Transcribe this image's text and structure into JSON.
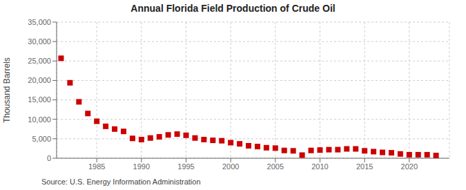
{
  "chart_data": {
    "type": "scatter",
    "title": "Annual Florida Field Production of Crude Oil",
    "ylabel": "Thousand Barrels",
    "annotations": [
      "Source: U.S. Energy Information Administration"
    ],
    "x": [
      1981,
      1982,
      1983,
      1984,
      1985,
      1986,
      1987,
      1988,
      1989,
      1990,
      1991,
      1992,
      1993,
      1994,
      1995,
      1996,
      1997,
      1998,
      1999,
      2000,
      2001,
      2002,
      2003,
      2004,
      2005,
      2006,
      2007,
      2008,
      2009,
      2010,
      2011,
      2012,
      2013,
      2014,
      2015,
      2016,
      2017,
      2018,
      2019,
      2020,
      2021,
      2022,
      2023
    ],
    "values": [
      25700,
      19400,
      14500,
      11500,
      9500,
      8200,
      7500,
      6900,
      5100,
      4800,
      5200,
      5500,
      6000,
      6200,
      5900,
      5200,
      4800,
      4600,
      4500,
      4000,
      3700,
      3200,
      3000,
      2700,
      2600,
      2000,
      1900,
      800,
      2000,
      2100,
      2200,
      2200,
      2400,
      2400,
      1900,
      1700,
      1500,
      1400,
      1100,
      900,
      900,
      900,
      700
    ],
    "color": "#cc0000",
    "marker": "square",
    "xlim": [
      1980.5,
      2024.5
    ],
    "xticks": [
      1985,
      1990,
      1995,
      2000,
      2005,
      2010,
      2015,
      2020
    ],
    "ylim": [
      0,
      35000
    ],
    "yticks": [
      0,
      {
        "value": 5000,
        "label": "5,000"
      },
      {
        "value": 10000,
        "label": "10,000"
      },
      {
        "value": 15000,
        "label": "15,000"
      },
      {
        "value": 20000,
        "label": "20,000"
      },
      {
        "value": 25000,
        "label": "25,000"
      },
      {
        "value": 30000,
        "label": "30,000"
      },
      {
        "value": 35000,
        "label": "35,000"
      }
    ],
    "grid": true
  }
}
